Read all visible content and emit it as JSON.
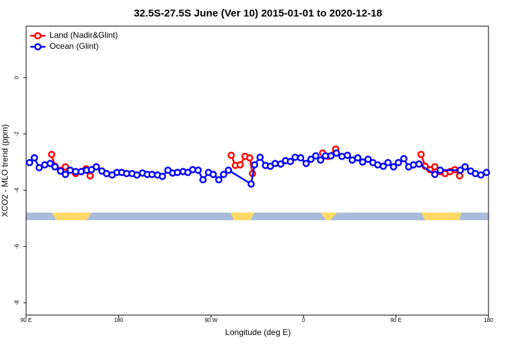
{
  "chart_data": {
    "type": "line",
    "title": "32.5S-27.5S June (Ver 10)   2015-01-01 to 2020-12-18",
    "xlabel": "Longitude (deg E)",
    "ylabel": "XCO2 - MLO trend (ppm)",
    "xlim": [
      90,
      540
    ],
    "ylim": [
      -8.44,
      1.83
    ],
    "xticks": [
      {
        "value": 90,
        "label": "90 E"
      },
      {
        "value": 180,
        "label": "180"
      },
      {
        "value": 270,
        "label": "90 W"
      },
      {
        "value": 360,
        "label": "0"
      },
      {
        "value": 450,
        "label": "90 E"
      },
      {
        "value": 540,
        "label": "180"
      }
    ],
    "yticks": [
      0,
      -2,
      -4,
      -6,
      -8
    ],
    "legend": "top-left",
    "series": [
      {
        "name": "Land (Nadir&Glint)",
        "color": "#ff0000",
        "x": [
          114.8,
          118.1,
          123.5,
          128.2,
          138.2,
          143.6,
          148.3,
          152.3,
          null,
          289.6,
          293.6,
          298.3,
          303.0,
          307.6,
          310.3,
          null,
          378.6,
          384.0,
          391.3,
          null,
          474.4,
          478.4,
          483.1,
          487.8,
          493.1,
          497.8,
          502.5,
          507.2,
          511.9
        ],
        "values": [
          -2.73,
          -3.15,
          -3.29,
          -3.17,
          -3.41,
          -3.34,
          -3.24,
          -3.49,
          null,
          -2.76,
          -3.12,
          -3.1,
          -2.8,
          -2.85,
          -3.41,
          null,
          -2.68,
          -2.8,
          -2.54,
          null,
          -2.73,
          -3.15,
          -3.27,
          -3.17,
          -3.34,
          -3.41,
          -3.34,
          -3.27,
          -3.49
        ]
      },
      {
        "name": "Ocean (Glint)",
        "color": "#0000ff",
        "x": [
          93.3,
          98.0,
          102.7,
          108.1,
          113.4,
          118.1,
          123.5,
          128.2,
          132.9,
          138.2,
          143.6,
          148.9,
          153.6,
          158.3,
          163.7,
          168.3,
          173.7,
          178.4,
          183.1,
          187.8,
          193.1,
          197.8,
          203.2,
          207.9,
          212.5,
          217.9,
          222.6,
          228.0,
          232.6,
          237.3,
          242.7,
          247.4,
          252.1,
          257.4,
          262.1,
          267.5,
          272.1,
          277.5,
          282.2,
          286.9,
          309.0,
          312.3,
          317.7,
          323.0,
          327.7,
          332.4,
          337.8,
          342.5,
          347.2,
          351.8,
          357.2,
          362.5,
          367.2,
          371.9,
          376.6,
          381.3,
          386.7,
          392.0,
          397.4,
          402.7,
          407.4,
          412.8,
          417.5,
          422.8,
          427.5,
          432.2,
          437.6,
          442.2,
          447.6,
          452.3,
          457.6,
          462.3,
          467.0,
          472.4,
          487.8,
          493.1,
          512.6,
          517.2,
          522.6,
          527.3,
          532.6,
          538.0
        ],
        "values": [
          -3.02,
          -2.85,
          -3.2,
          -3.1,
          -3.05,
          -3.17,
          -3.32,
          -3.44,
          -3.29,
          -3.34,
          -3.34,
          -3.29,
          -3.27,
          -3.17,
          -3.32,
          -3.41,
          -3.46,
          -3.37,
          -3.37,
          -3.41,
          -3.41,
          -3.46,
          -3.39,
          -3.44,
          -3.44,
          -3.46,
          -3.51,
          -3.29,
          -3.39,
          -3.37,
          -3.34,
          -3.37,
          -3.27,
          -3.29,
          -3.63,
          -3.37,
          -3.44,
          -3.63,
          -3.44,
          -3.29,
          -3.78,
          -3.1,
          -2.83,
          -3.12,
          -3.15,
          -3.05,
          -3.07,
          -2.95,
          -2.98,
          -2.83,
          -2.85,
          -3.05,
          -2.9,
          -2.78,
          -2.93,
          -2.78,
          -2.78,
          -2.68,
          -2.8,
          -2.76,
          -2.93,
          -2.85,
          -3.0,
          -2.9,
          -3.02,
          -3.1,
          -3.15,
          -3.02,
          -3.17,
          -3.02,
          -2.88,
          -3.17,
          -3.1,
          -3.07,
          -3.44,
          -3.29,
          -3.29,
          -3.17,
          -3.32,
          -3.41,
          -3.46,
          -3.37
        ]
      }
    ]
  }
}
